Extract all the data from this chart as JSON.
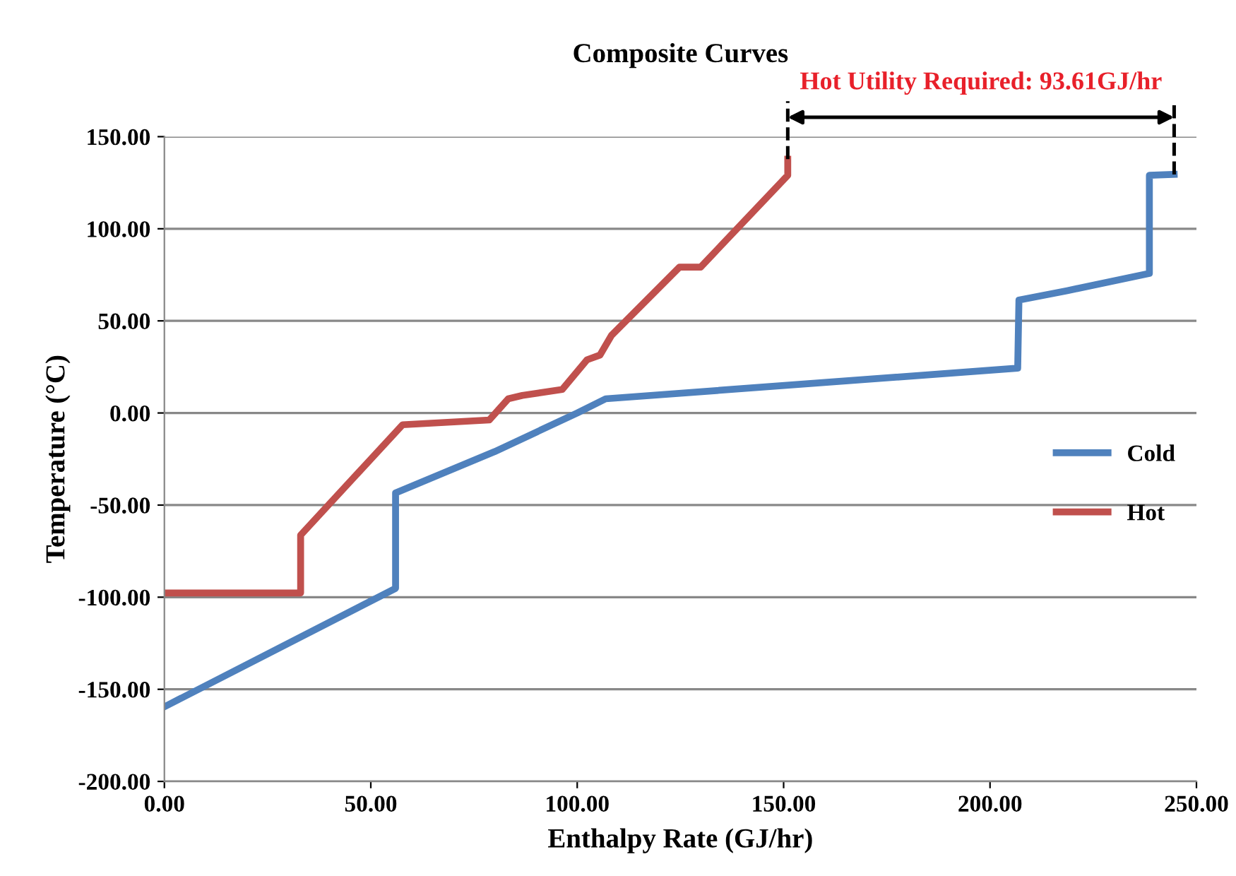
{
  "chart_data": {
    "type": "line",
    "title": "Composite Curves",
    "xlabel": "Enthalpy Rate (GJ/hr)",
    "ylabel": "Temperature (°C)",
    "annotations": [
      {
        "text": "Hot Utility Required: 93.61GJ/hr",
        "x": 151.0,
        "y": 137.8
      }
    ],
    "series": [
      {
        "name": "Cold",
        "color": "#4f81bd",
        "x": [
          0,
          56.0,
          56.0,
          80,
          100,
          106.9,
          206.7,
          207.0,
          218.7,
          238.6,
          238.6,
          244.6
        ],
        "values": [
          -159.5,
          -95.2,
          -43.4,
          -21,
          0,
          7.7,
          24.3,
          61.3,
          66.4,
          75.8,
          129.0,
          129.5
        ]
      },
      {
        "name": "Hot",
        "color": "#c0504d",
        "x": [
          0,
          33.0,
          33.0,
          57.7,
          78.7,
          83.3,
          86.7,
          96.4,
          102.4,
          105.5,
          108.3,
          124.8,
          129.9,
          151.0,
          151.0
        ],
        "values": [
          -97.7,
          -97.7,
          -66.3,
          -6.4,
          -3.8,
          7.7,
          9.5,
          12.8,
          28.9,
          31.4,
          42.1,
          79.2,
          79.2,
          129.0,
          137.8
        ]
      }
    ],
    "xlim": [
      0,
      250
    ],
    "ylim": [
      -200,
      150
    ],
    "xticks": [
      {
        "value": 0,
        "label": "0.00"
      },
      {
        "value": 50,
        "label": "50.00"
      },
      {
        "value": 100,
        "label": "100.00"
      },
      {
        "value": 150,
        "label": "150.00"
      },
      {
        "value": 200,
        "label": "200.00"
      },
      {
        "value": 250,
        "label": "250.00"
      }
    ],
    "yticks": [
      {
        "value": -200,
        "label": "-200.00"
      },
      {
        "value": -150,
        "label": "-150.00"
      },
      {
        "value": -100,
        "label": "-100.00"
      },
      {
        "value": -50,
        "label": "-50.00"
      },
      {
        "value": 0,
        "label": "0.00"
      },
      {
        "value": 50,
        "label": "50.00"
      },
      {
        "value": 100,
        "label": "100.00"
      },
      {
        "value": 150,
        "label": "150.00"
      }
    ],
    "grid": "y",
    "legend": "right",
    "marker": "none",
    "line_style": "solid"
  }
}
